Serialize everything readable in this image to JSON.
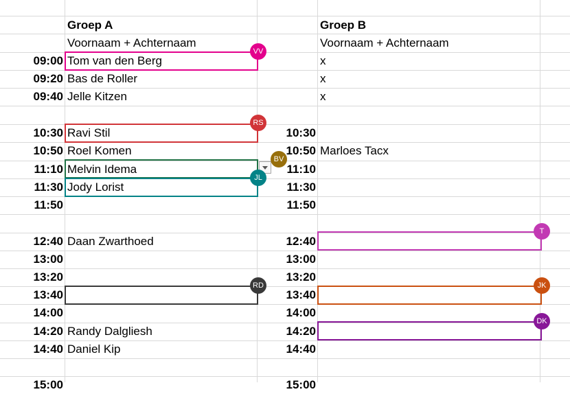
{
  "groupA": {
    "title": "Groep A",
    "subtitle": "Voornaam + Achternaam",
    "rows": [
      {
        "time": "09:00",
        "name": "Tom van den Berg"
      },
      {
        "time": "09:20",
        "name": "Bas de Roller"
      },
      {
        "time": "09:40",
        "name": "Jelle Kitzen"
      },
      {
        "time": "10:30",
        "name": "Ravi Stil"
      },
      {
        "time": "10:50",
        "name": "Roel Komen"
      },
      {
        "time": "11:10",
        "name": "Melvin Idema"
      },
      {
        "time": "11:30",
        "name": "Jody Lorist"
      },
      {
        "time": "11:50",
        "name": ""
      },
      {
        "time": "12:40",
        "name": "Daan Zwarthoed"
      },
      {
        "time": "13:00",
        "name": ""
      },
      {
        "time": "13:20",
        "name": ""
      },
      {
        "time": "13:40",
        "name": ""
      },
      {
        "time": "14:00",
        "name": ""
      },
      {
        "time": "14:20",
        "name": "Randy Dalgliesh"
      },
      {
        "time": "14:40",
        "name": "Daniel Kip"
      },
      {
        "time": "15:00",
        "name": ""
      }
    ]
  },
  "groupB": {
    "title": "Groep B",
    "subtitle": "Voornaam + Achternaam",
    "x_rows": [
      "x",
      "x",
      "x"
    ],
    "rows": [
      {
        "time": "10:30",
        "name": ""
      },
      {
        "time": "10:50",
        "name": "Marloes Tacx"
      },
      {
        "time": "11:10",
        "name": ""
      },
      {
        "time": "11:30",
        "name": ""
      },
      {
        "time": "11:50",
        "name": ""
      },
      {
        "time": "12:40",
        "name": ""
      },
      {
        "time": "13:00",
        "name": ""
      },
      {
        "time": "13:20",
        "name": ""
      },
      {
        "time": "13:40",
        "name": ""
      },
      {
        "time": "14:00",
        "name": ""
      },
      {
        "time": "14:20",
        "name": ""
      },
      {
        "time": "14:40",
        "name": ""
      },
      {
        "time": "15:00",
        "name": ""
      }
    ]
  },
  "collaborators": [
    {
      "initials": "VV",
      "color": "#e3008c"
    },
    {
      "initials": "RS",
      "color": "#d13438"
    },
    {
      "initials": "BV",
      "color": "#986f0b"
    },
    {
      "initials": "JL",
      "color": "#038387"
    },
    {
      "initials": "RD",
      "color": "#393939"
    },
    {
      "initials": "T",
      "color": "#c239b3"
    },
    {
      "initials": "JK",
      "color": "#ca5010"
    },
    {
      "initials": "DK",
      "color": "#881798"
    }
  ]
}
